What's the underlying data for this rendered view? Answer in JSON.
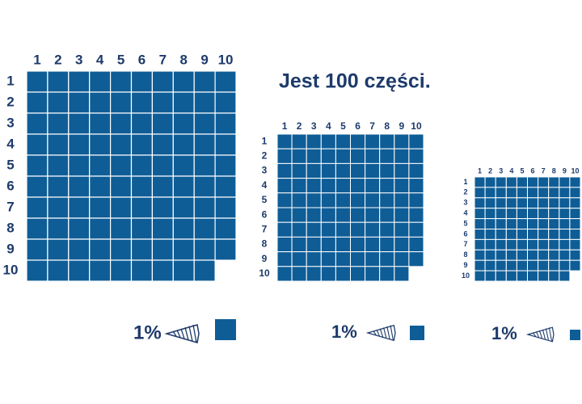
{
  "title": "Jest 100 części.",
  "grids": [
    {
      "col_labels": [
        "1",
        "2",
        "3",
        "4",
        "5",
        "6",
        "7",
        "8",
        "9",
        "10"
      ],
      "row_labels": [
        "1",
        "2",
        "3",
        "4",
        "5",
        "6",
        "7",
        "8",
        "9",
        "10"
      ],
      "percent_label": "1%"
    },
    {
      "col_labels": [
        "1",
        "2",
        "3",
        "4",
        "5",
        "6",
        "7",
        "8",
        "9",
        "10"
      ],
      "row_labels": [
        "1",
        "2",
        "3",
        "4",
        "5",
        "6",
        "7",
        "8",
        "9",
        "10"
      ],
      "percent_label": "1%"
    },
    {
      "col_labels": [
        "1",
        "2",
        "3",
        "4",
        "5",
        "6",
        "7",
        "8",
        "9",
        "10"
      ],
      "row_labels": [
        "1",
        "2",
        "3",
        "4",
        "5",
        "6",
        "7",
        "8",
        "9",
        "10"
      ],
      "percent_label": "1%"
    }
  ]
}
